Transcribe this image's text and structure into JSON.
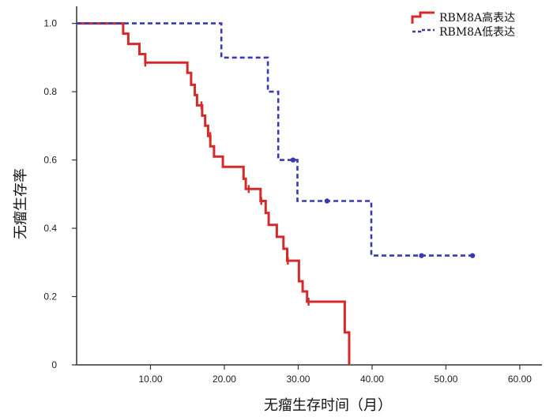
{
  "chart_data": {
    "type": "line",
    "subtype": "kaplan-meier step",
    "xlabel": "无瘤生存时间（月）",
    "ylabel": "无瘤生存率",
    "xlim": [
      0,
      63
    ],
    "ylim": [
      0,
      1.05
    ],
    "x_ticks": [
      10,
      20,
      30,
      40,
      50,
      60
    ],
    "x_tick_labels": [
      "10.00",
      "20.00",
      "30.00",
      "40.00",
      "50.00",
      "60.00"
    ],
    "y_ticks": [
      0,
      0.2,
      0.4,
      0.6,
      0.8,
      1.0
    ],
    "y_tick_labels": [
      "0",
      "0.2",
      "0.4",
      "0.6",
      "0.8",
      "1.0"
    ],
    "legend_position": "top-right",
    "grid": false,
    "series": [
      {
        "name": "RBM8A高表达",
        "color": "#d42a2a",
        "line_style": "solid",
        "steps": [
          [
            0,
            1.0
          ],
          [
            6.3,
            1.0
          ],
          [
            6.3,
            0.97
          ],
          [
            7.0,
            0.97
          ],
          [
            7.0,
            0.94
          ],
          [
            8.5,
            0.94
          ],
          [
            8.5,
            0.91
          ],
          [
            9.3,
            0.91
          ],
          [
            9.3,
            0.885
          ],
          [
            15.0,
            0.885
          ],
          [
            15.0,
            0.855
          ],
          [
            15.5,
            0.855
          ],
          [
            15.5,
            0.82
          ],
          [
            16.0,
            0.82
          ],
          [
            16.0,
            0.79
          ],
          [
            16.3,
            0.79
          ],
          [
            16.3,
            0.76
          ],
          [
            17.0,
            0.76
          ],
          [
            17.0,
            0.73
          ],
          [
            17.4,
            0.73
          ],
          [
            17.4,
            0.7
          ],
          [
            17.8,
            0.7
          ],
          [
            17.8,
            0.67
          ],
          [
            18.1,
            0.67
          ],
          [
            18.1,
            0.64
          ],
          [
            18.6,
            0.64
          ],
          [
            18.6,
            0.61
          ],
          [
            19.8,
            0.61
          ],
          [
            19.8,
            0.58
          ],
          [
            22.6,
            0.58
          ],
          [
            22.6,
            0.545
          ],
          [
            22.9,
            0.545
          ],
          [
            22.9,
            0.515
          ],
          [
            24.9,
            0.515
          ],
          [
            24.9,
            0.48
          ],
          [
            25.6,
            0.48
          ],
          [
            25.6,
            0.445
          ],
          [
            26.0,
            0.445
          ],
          [
            26.0,
            0.41
          ],
          [
            27.1,
            0.41
          ],
          [
            27.1,
            0.375
          ],
          [
            28.0,
            0.375
          ],
          [
            28.0,
            0.34
          ],
          [
            28.5,
            0.34
          ],
          [
            28.5,
            0.305
          ],
          [
            30.1,
            0.305
          ],
          [
            30.1,
            0.245
          ],
          [
            30.6,
            0.245
          ],
          [
            30.6,
            0.215
          ],
          [
            31.2,
            0.215
          ],
          [
            31.2,
            0.185
          ],
          [
            36.3,
            0.185
          ],
          [
            36.3,
            0.095
          ],
          [
            36.9,
            0.095
          ],
          [
            36.9,
            0.0
          ]
        ],
        "censored": [
          [
            9.3,
            0.885
          ],
          [
            16.9,
            0.76
          ],
          [
            18.1,
            0.67
          ],
          [
            23.3,
            0.515
          ],
          [
            25.0,
            0.48
          ],
          [
            28.6,
            0.305
          ],
          [
            31.4,
            0.185
          ]
        ]
      },
      {
        "name": "RBM8A低表达",
        "color": "#3a3ab0",
        "line_style": "dashed",
        "steps": [
          [
            0,
            1.0
          ],
          [
            19.6,
            1.0
          ],
          [
            19.6,
            0.9
          ],
          [
            25.9,
            0.9
          ],
          [
            25.9,
            0.8
          ],
          [
            27.3,
            0.8
          ],
          [
            27.3,
            0.6
          ],
          [
            29.9,
            0.6
          ],
          [
            29.9,
            0.48
          ],
          [
            39.9,
            0.48
          ],
          [
            39.9,
            0.32
          ],
          [
            53.6,
            0.32
          ]
        ],
        "censored": [
          [
            29.3,
            0.6
          ],
          [
            33.9,
            0.48
          ],
          [
            46.7,
            0.32
          ],
          [
            53.6,
            0.32
          ]
        ]
      }
    ]
  }
}
